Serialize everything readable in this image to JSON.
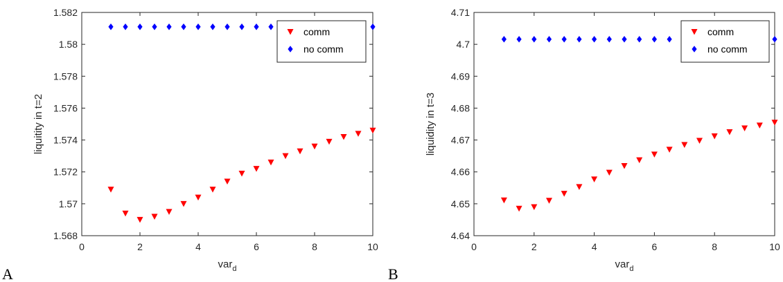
{
  "chart_data": [
    {
      "type": "scatter",
      "panel_label": "A",
      "xlabel": {
        "base": "var",
        "sub": "d"
      },
      "ylabel": "liquitity in t=2",
      "xlim": [
        0,
        10
      ],
      "ylim": [
        1.568,
        1.582
      ],
      "xticks": [
        "0",
        "2",
        "4",
        "6",
        "8",
        "10"
      ],
      "yticks": [
        "1.568",
        "1.57",
        "1.572",
        "1.574",
        "1.576",
        "1.578",
        "1.58",
        "1.582"
      ],
      "legend_position": "top-right",
      "series": [
        {
          "name": "comm",
          "marker": "triangle-down",
          "color": "#ff0000",
          "x": [
            1,
            1.5,
            2,
            2.5,
            3,
            3.5,
            4,
            4.5,
            5,
            5.5,
            6,
            6.5,
            7,
            7.5,
            8,
            8.5,
            9,
            9.5,
            10
          ],
          "y": [
            1.5709,
            1.5694,
            1.569,
            1.5692,
            1.5695,
            1.57,
            1.5704,
            1.5709,
            1.5714,
            1.5719,
            1.5722,
            1.5726,
            1.573,
            1.5733,
            1.5736,
            1.5739,
            1.5742,
            1.5744,
            1.5746
          ]
        },
        {
          "name": "no comm",
          "marker": "diamond",
          "color": "#0000ff",
          "x": [
            1,
            1.5,
            2,
            2.5,
            3,
            3.5,
            4,
            4.5,
            5,
            5.5,
            6,
            6.5,
            10
          ],
          "y": [
            1.5811,
            1.5811,
            1.5811,
            1.5811,
            1.5811,
            1.5811,
            1.5811,
            1.5811,
            1.5811,
            1.5811,
            1.5811,
            1.5811,
            1.5811
          ]
        }
      ]
    },
    {
      "type": "scatter",
      "panel_label": "B",
      "xlabel": {
        "base": "var",
        "sub": "d"
      },
      "ylabel": "liquidity in t=3",
      "xlim": [
        0,
        10
      ],
      "ylim": [
        4.64,
        4.71
      ],
      "xticks": [
        "0",
        "2",
        "4",
        "6",
        "8",
        "10"
      ],
      "yticks": [
        "4.64",
        "4.65",
        "4.66",
        "4.67",
        "4.68",
        "4.69",
        "4.7",
        "4.71"
      ],
      "legend_position": "top-right",
      "series": [
        {
          "name": "comm",
          "marker": "triangle-down",
          "color": "#ff0000",
          "x": [
            1,
            1.5,
            2,
            2.5,
            3,
            3.5,
            4,
            4.5,
            5,
            5.5,
            6,
            6.5,
            7,
            7.5,
            8,
            8.5,
            9,
            9.5,
            10
          ],
          "y": [
            4.6511,
            4.6485,
            4.649,
            4.651,
            4.6532,
            4.6553,
            4.6577,
            4.6598,
            4.6619,
            4.6637,
            4.6655,
            4.667,
            4.6685,
            4.6698,
            4.6712,
            4.6725,
            4.6737,
            4.6746,
            4.6755
          ]
        },
        {
          "name": "no comm",
          "marker": "diamond",
          "color": "#0000ff",
          "x": [
            1,
            1.5,
            2,
            2.5,
            3,
            3.5,
            4,
            4.5,
            5,
            5.5,
            6,
            6.5,
            10
          ],
          "y": [
            4.7016,
            4.7016,
            4.7016,
            4.7016,
            4.7016,
            4.7016,
            4.7016,
            4.7016,
            4.7016,
            4.7016,
            4.7016,
            4.7016,
            4.7016
          ]
        }
      ]
    }
  ]
}
